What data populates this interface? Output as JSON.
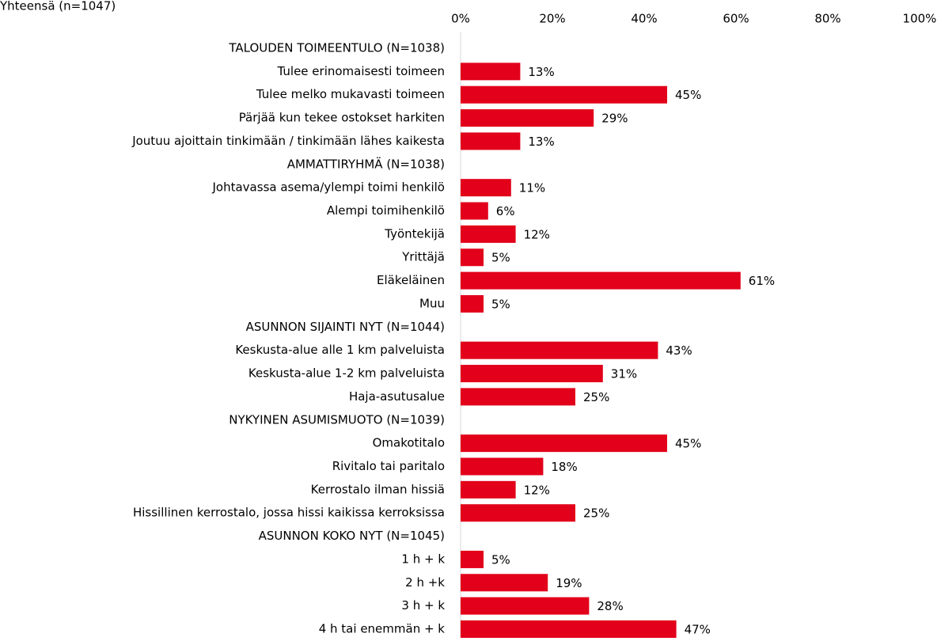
{
  "chart_data": {
    "type": "bar",
    "orientation": "horizontal",
    "title": "Yhteensä (n=1047)",
    "categories": [
      "TALOUDEN TOIMEENTULO (N=1038)",
      "Tulee erinomaisesti toimeen",
      "Tulee melko mukavasti toimeen",
      "Pärjää kun tekee ostokset harkiten",
      "Joutuu ajoittain tinkimään / tinkimään lähes kaikesta",
      "AMMATTIRYHMÄ (N=1038)",
      "Johtavassa asema/ylempi toimi henkilö",
      "Alempi toimihenkilö",
      "Työntekijä",
      "Yrittäjä",
      "Eläkeläinen",
      "Muu",
      "ASUNNON SIJAINTI NYT (N=1044)",
      "Keskusta-alue alle 1 km palveluista",
      "Keskusta-alue 1-2 km palveluista",
      "Haja-asutusalue",
      "NYKYINEN ASUMISMUOTO (N=1039)",
      "Omakotitalo",
      "Rivitalo tai paritalo",
      "Kerrostalo ilman hissiä",
      "Hissillinen kerrostalo, jossa hissi kaikissa kerroksissa",
      "ASUNNON KOKO NYT (N=1045)",
      "1 h + k",
      "2 h +k",
      "3 h + k",
      "4 h tai enemmän + k"
    ],
    "values": [
      null,
      13,
      45,
      29,
      13,
      null,
      11,
      6,
      12,
      5,
      61,
      5,
      null,
      43,
      31,
      25,
      null,
      45,
      18,
      12,
      25,
      null,
      5,
      19,
      28,
      47
    ],
    "value_labels": [
      null,
      "13%",
      "45%",
      "29%",
      "13%",
      null,
      "11%",
      "6%",
      "12%",
      "5%",
      "61%",
      "5%",
      null,
      "43%",
      "31%",
      "25%",
      null,
      "45%",
      "18%",
      "12%",
      "25%",
      null,
      "5%",
      "19%",
      "28%",
      "47%"
    ],
    "color": "#e2001a",
    "xlim": [
      0,
      100
    ],
    "xticks": [
      {
        "value": 0,
        "label": "0%"
      },
      {
        "value": 20,
        "label": "20%"
      },
      {
        "value": 40,
        "label": "40%"
      },
      {
        "value": 60,
        "label": "60%"
      },
      {
        "value": 80,
        "label": "80%"
      },
      {
        "value": 100,
        "label": "100%"
      }
    ]
  }
}
